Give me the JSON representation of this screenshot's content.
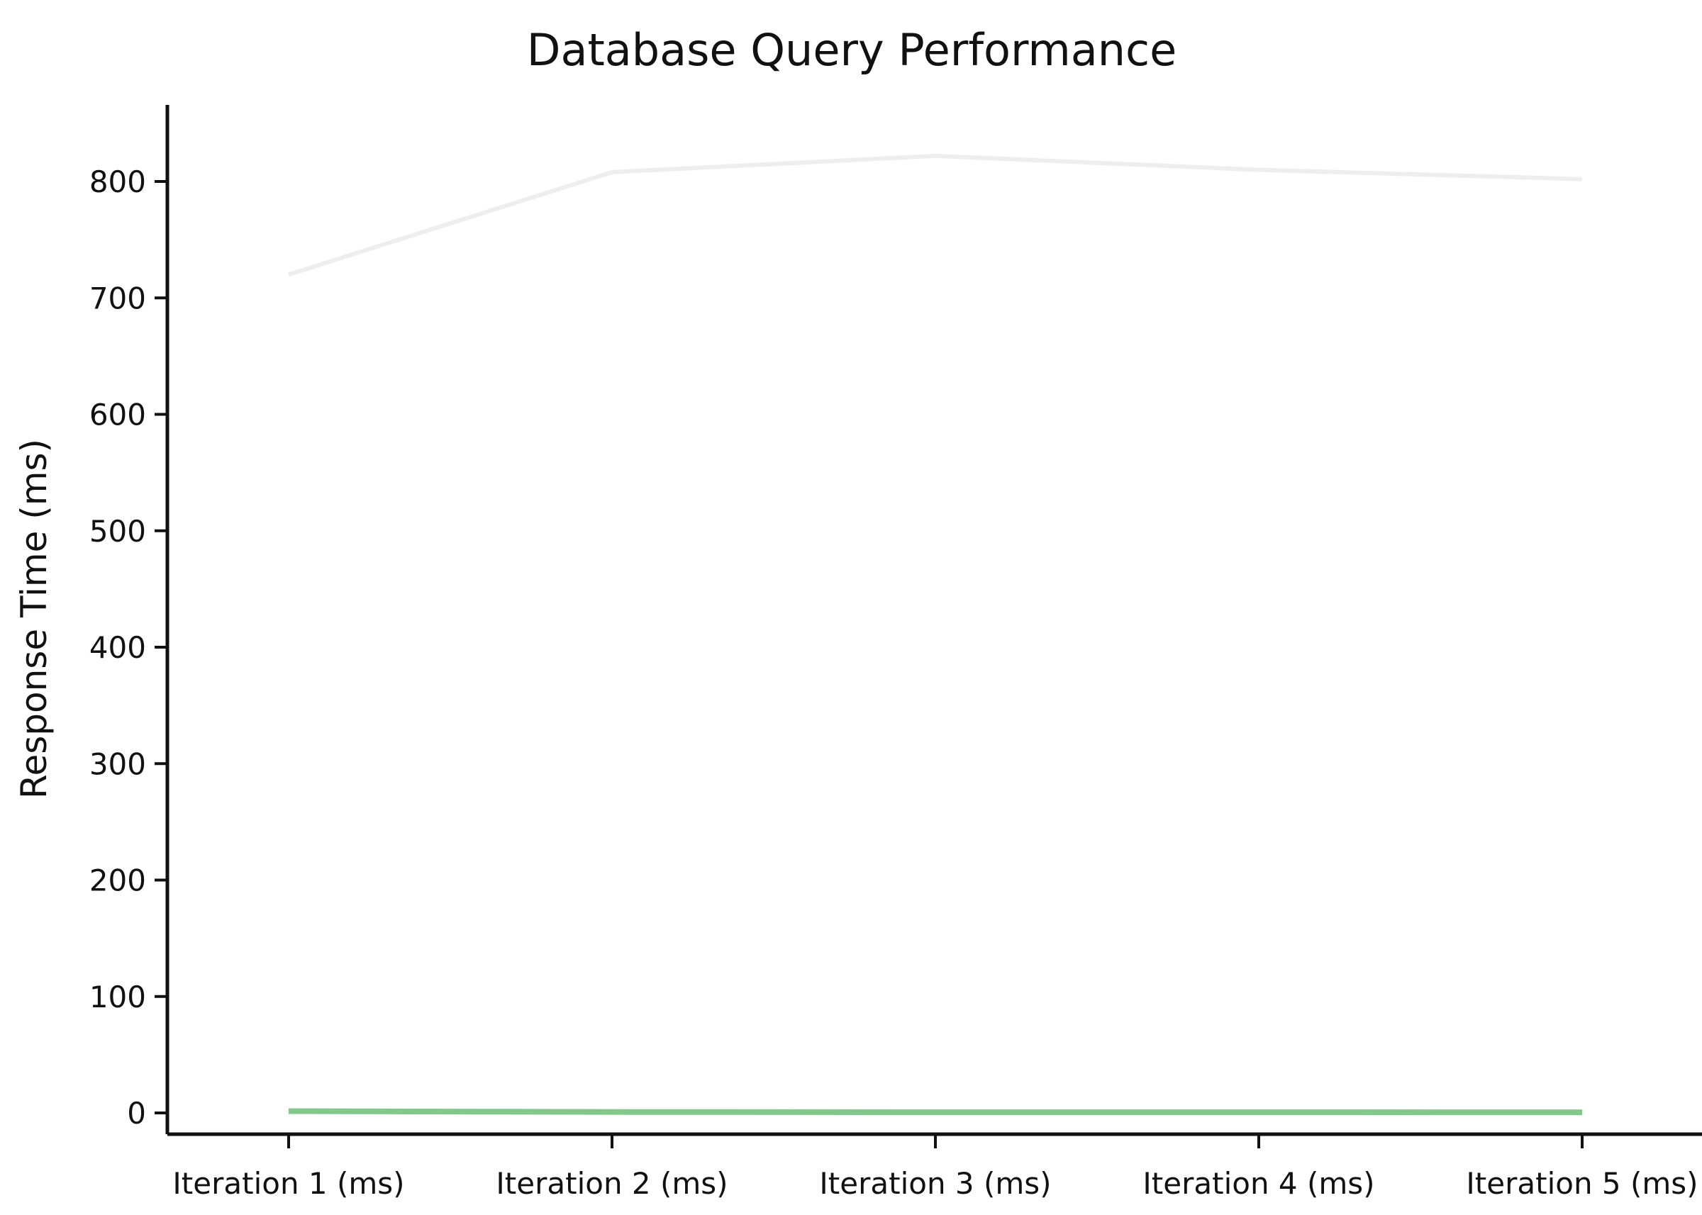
{
  "chart_data": {
    "type": "line",
    "title": "Database Query Performance",
    "xlabel": "",
    "ylabel": "Response Time (ms)",
    "categories": [
      "Iteration 1 (ms)",
      "Iteration 2 (ms)",
      "Iteration 3 (ms)",
      "Iteration 4 (ms)",
      "Iteration 5 (ms)"
    ],
    "ylim": [
      -20,
      866
    ],
    "yticks": [
      0,
      100,
      200,
      300,
      400,
      500,
      600,
      700,
      800
    ],
    "grid": false,
    "legend": "none",
    "series": [
      {
        "values": [
          720,
          808,
          822,
          810,
          802
        ],
        "color": "#eeeeee"
      },
      {
        "values": [
          1.5,
          0.8,
          0.6,
          0.6,
          0.5
        ],
        "color": "#82c88a"
      }
    ]
  }
}
